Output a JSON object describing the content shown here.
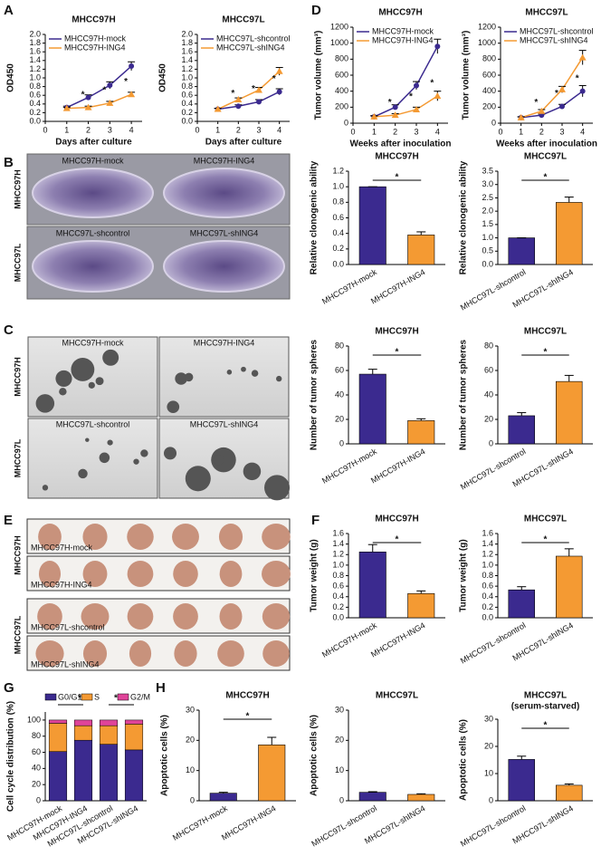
{
  "panel_labels": [
    "A",
    "B",
    "C",
    "D",
    "E",
    "F",
    "G",
    "H"
  ],
  "photo_panels": {
    "B": {
      "rows": [
        "MHCC97H",
        "MHCC97L"
      ],
      "captions": [
        [
          "MHCC97H-mock",
          "MHCC97H-ING4"
        ],
        [
          "MHCC97L-shcontrol",
          "MHCC97L-shING4"
        ]
      ]
    },
    "C": {
      "rows": [
        "MHCC97H",
        "MHCC97L"
      ],
      "captions": [
        [
          "MHCC97H-mock",
          "MHCC97H-ING4"
        ],
        [
          "MHCC97L-shcontrol",
          "MHCC97L-shING4"
        ]
      ]
    },
    "E": {
      "rows": [
        "MHCC97H",
        "MHCC97L"
      ],
      "captions": [
        [
          "MHCC97H-mock",
          "MHCC97H-ING4"
        ],
        [
          "MHCC97L-shcontrol",
          "MHCC97L-shING4"
        ]
      ]
    }
  },
  "chart_data": [
    {
      "type": "line",
      "title": "MHCC97H",
      "x_label": "Days after culture",
      "y_label": "OD450",
      "x": [
        1,
        2,
        3,
        4
      ],
      "xlim": [
        0,
        4.5
      ],
      "xticks": [
        0,
        1,
        2,
        3,
        4
      ],
      "ylim": [
        0,
        2.0
      ],
      "yticks": [
        {
          "value": 0,
          "label": "0.0"
        },
        0.2,
        0.4,
        0.6,
        0.8,
        {
          "value": 1,
          "label": "1.0"
        },
        1.2,
        1.4,
        1.6,
        1.8,
        {
          "value": 2,
          "label": "2.0"
        }
      ],
      "series": [
        {
          "name": "MHCC97H-mock",
          "color": "#3b2a8f",
          "values": [
            0.32,
            0.55,
            0.83,
            1.27
          ],
          "errors": [
            0.03,
            0.06,
            0.08,
            0.1
          ]
        },
        {
          "name": "MHCC97H-ING4",
          "color": "#f49a33",
          "values": [
            0.3,
            0.32,
            0.42,
            0.62
          ],
          "errors": [
            0.02,
            0.03,
            0.04,
            0.05
          ]
        }
      ],
      "annotations": [
        {
          "text": "*",
          "x": 2
        },
        {
          "text": "*",
          "x": 3
        },
        {
          "text": "*",
          "x": 4
        }
      ]
    },
    {
      "type": "line",
      "title": "MHCC97L",
      "x_label": "Days after culture",
      "y_label": "OD450",
      "x": [
        1,
        2,
        3,
        4
      ],
      "xlim": [
        0,
        4.5
      ],
      "xticks": [
        0,
        1,
        2,
        3,
        4
      ],
      "ylim": [
        0,
        2.0
      ],
      "yticks": [
        {
          "value": 0,
          "label": "0.0"
        },
        0.2,
        0.4,
        0.6,
        0.8,
        {
          "value": 1,
          "label": "1.0"
        },
        1.2,
        1.4,
        1.6,
        1.8,
        {
          "value": 2,
          "label": "2.0"
        }
      ],
      "series": [
        {
          "name": "MHCC97L-shcontrol",
          "color": "#3b2a8f",
          "values": [
            0.28,
            0.35,
            0.45,
            0.68
          ],
          "errors": [
            0.02,
            0.03,
            0.05,
            0.07
          ]
        },
        {
          "name": "MHCC97L-shING4",
          "color": "#f49a33",
          "values": [
            0.28,
            0.5,
            0.72,
            1.15
          ],
          "errors": [
            0.02,
            0.04,
            0.06,
            0.09
          ]
        }
      ],
      "annotations": [
        {
          "text": "*",
          "x": 2
        },
        {
          "text": "*",
          "x": 3
        },
        {
          "text": "*",
          "x": 4
        }
      ]
    },
    {
      "type": "line",
      "title": "MHCC97H",
      "x_label": "Weeks after inoculation",
      "y_label": "Tumor volume (mm³)",
      "x": [
        1,
        2,
        3,
        4
      ],
      "xlim": [
        0,
        4.5
      ],
      "xticks": [
        0,
        1,
        2,
        3,
        4
      ],
      "ylim": [
        0,
        1200
      ],
      "yticks": [
        0,
        200,
        400,
        600,
        800,
        1000,
        1200
      ],
      "series": [
        {
          "name": "MHCC97H-mock",
          "color": "#3b2a8f",
          "values": [
            80,
            200,
            470,
            960
          ],
          "errors": [
            15,
            30,
            50,
            90
          ]
        },
        {
          "name": "MHCC97H-ING4",
          "color": "#f49a33",
          "values": [
            80,
            100,
            170,
            340
          ],
          "errors": [
            10,
            20,
            30,
            60
          ]
        }
      ],
      "annotations": [
        {
          "text": "*",
          "x": 2
        },
        {
          "text": "*",
          "x": 3
        },
        {
          "text": "*",
          "x": 4
        }
      ]
    },
    {
      "type": "line",
      "title": "MHCC97L",
      "x_label": "Weeks after inoculation",
      "y_label": "Tumor volume (mm³)",
      "x": [
        1,
        2,
        3,
        4
      ],
      "xlim": [
        0,
        4.5
      ],
      "xticks": [
        0,
        1,
        2,
        3,
        4
      ],
      "ylim": [
        0,
        1200
      ],
      "yticks": [
        0,
        200,
        400,
        600,
        800,
        1000,
        1200
      ],
      "series": [
        {
          "name": "MHCC97L-shcontrol",
          "color": "#3b2a8f",
          "values": [
            70,
            100,
            210,
            400
          ],
          "errors": [
            10,
            15,
            25,
            70
          ]
        },
        {
          "name": "MHCC97L-shING4",
          "color": "#f49a33",
          "values": [
            70,
            150,
            420,
            820
          ],
          "errors": [
            10,
            20,
            40,
            90
          ]
        }
      ],
      "annotations": [
        {
          "text": "*",
          "x": 2
        },
        {
          "text": "*",
          "x": 3
        },
        {
          "text": "*",
          "x": 4
        }
      ]
    },
    {
      "type": "bar",
      "title": "MHCC97H",
      "y_label": "Relative clonogenic ability",
      "categories": [
        "MHCC97H-mock",
        "MHCC97H-ING4"
      ],
      "values": [
        1.0,
        0.38
      ],
      "errors": [
        0,
        0.04
      ],
      "colors": [
        "#3b2a8f",
        "#f49a33"
      ],
      "ylim": [
        0,
        1.2
      ],
      "yticks": [
        {
          "value": 0,
          "label": "0.0"
        },
        0.2,
        0.4,
        0.6,
        0.8,
        {
          "value": 1,
          "label": "1.0"
        },
        1.2
      ],
      "annotations": [
        {
          "text": "*"
        }
      ]
    },
    {
      "type": "bar",
      "title": "MHCC97L",
      "y_label": "Relative clonogenic ability",
      "categories": [
        "MHCC97L-shcontrol",
        "MHCC97L-shING4"
      ],
      "values": [
        1.0,
        2.33
      ],
      "errors": [
        0,
        0.2
      ],
      "colors": [
        "#3b2a8f",
        "#f49a33"
      ],
      "ylim": [
        0,
        3.5
      ],
      "yticks": [
        {
          "value": 0,
          "label": "0.0"
        },
        0.5,
        {
          "value": 1,
          "label": "1.0"
        },
        1.5,
        {
          "value": 2,
          "label": "2.0"
        },
        2.5,
        {
          "value": 3,
          "label": "3.0"
        },
        3.5
      ],
      "annotations": [
        {
          "text": "*"
        }
      ]
    },
    {
      "type": "bar",
      "title": "MHCC97H",
      "y_label": "Number of tumor spheres",
      "categories": [
        "MHCC97H-mock",
        "MHCC97H-ING4"
      ],
      "values": [
        57,
        19
      ],
      "errors": [
        4,
        1.5
      ],
      "colors": [
        "#3b2a8f",
        "#f49a33"
      ],
      "ylim": [
        0,
        80
      ],
      "yticks": [
        0,
        20,
        40,
        60,
        80
      ],
      "annotations": [
        {
          "text": "*"
        }
      ]
    },
    {
      "type": "bar",
      "title": "MHCC97L",
      "y_label": "Number of tumor spheres",
      "categories": [
        "MHCC97L-shcontrol",
        "MHCC97L-shING4"
      ],
      "values": [
        23,
        51
      ],
      "errors": [
        2.5,
        5
      ],
      "colors": [
        "#3b2a8f",
        "#f49a33"
      ],
      "ylim": [
        0,
        80
      ],
      "yticks": [
        0,
        20,
        40,
        60,
        80
      ],
      "annotations": [
        {
          "text": "*"
        }
      ]
    },
    {
      "type": "bar",
      "title": "MHCC97H",
      "y_label": "Tumor weight (g)",
      "categories": [
        "MHCC97H-mock",
        "MHCC97H-ING4"
      ],
      "values": [
        1.25,
        0.46
      ],
      "errors": [
        0.14,
        0.05
      ],
      "colors": [
        "#3b2a8f",
        "#f49a33"
      ],
      "ylim": [
        0,
        1.6
      ],
      "yticks": [
        {
          "value": 0,
          "label": "0.0"
        },
        0.2,
        0.4,
        0.6,
        0.8,
        {
          "value": 1,
          "label": "1.0"
        },
        1.2,
        1.4,
        1.6
      ],
      "annotations": [
        {
          "text": "*"
        }
      ]
    },
    {
      "type": "bar",
      "title": "MHCC97L",
      "y_label": "Tumor weight (g)",
      "categories": [
        "MHCC97L-shcontrol",
        "MHCC97L-shING4"
      ],
      "values": [
        0.53,
        1.17
      ],
      "errors": [
        0.06,
        0.14
      ],
      "colors": [
        "#3b2a8f",
        "#f49a33"
      ],
      "ylim": [
        0,
        1.6
      ],
      "yticks": [
        {
          "value": 0,
          "label": "0.0"
        },
        0.2,
        0.4,
        0.6,
        0.8,
        {
          "value": 1,
          "label": "1.0"
        },
        1.2,
        1.4,
        1.6
      ],
      "annotations": [
        {
          "text": "*"
        }
      ]
    },
    {
      "type": "stacked-bar",
      "y_label": "Cell cycle distribution (%)",
      "categories": [
        "MHCC97H-mock",
        "MHCC97H-ING4",
        "MHCC97L-shcontrol",
        "MHCC97L-shING4"
      ],
      "series": [
        {
          "name": "G0/G1",
          "color": "#3b2a8f",
          "values": [
            61,
            75,
            70,
            63
          ]
        },
        {
          "name": "S",
          "color": "#f49a33",
          "values": [
            35,
            18,
            23,
            32
          ]
        },
        {
          "name": "G2/M",
          "color": "#e0449a",
          "values": [
            4,
            7,
            7,
            5
          ]
        }
      ],
      "ylim": [
        0,
        110
      ],
      "yticks": [
        0,
        20,
        40,
        60,
        80,
        100
      ],
      "annotations": [
        {
          "text": "*"
        },
        {
          "text": "*"
        }
      ]
    },
    {
      "type": "bar",
      "title": "MHCC97H",
      "y_label": "Apoptotic cells (%)",
      "categories": [
        "MHCC97H-mock",
        "MHCC97H-ING4"
      ],
      "values": [
        2.5,
        18.5
      ],
      "errors": [
        0.3,
        2.5
      ],
      "colors": [
        "#3b2a8f",
        "#f49a33"
      ],
      "ylim": [
        0,
        30
      ],
      "yticks": [
        0,
        10,
        20,
        30
      ],
      "annotations": [
        {
          "text": "*"
        }
      ]
    },
    {
      "type": "bar",
      "title": "MHCC97L",
      "y_label": "Apoptotic cells (%)",
      "categories": [
        "MHCC97L-shcontrol",
        "MHCC97L-shING4"
      ],
      "values": [
        2.8,
        2.1
      ],
      "errors": [
        0.2,
        0.2
      ],
      "colors": [
        "#3b2a8f",
        "#f49a33"
      ],
      "ylim": [
        0,
        30
      ],
      "yticks": [
        0,
        10,
        20,
        30
      ]
    },
    {
      "type": "bar",
      "title": "MHCC97L",
      "subtitle": "(serum-starved)",
      "y_label": "Apoptotic cells (%)",
      "categories": [
        "MHCC97L-shcontrol",
        "MHCC97L-shING4"
      ],
      "values": [
        15.2,
        5.7
      ],
      "errors": [
        1.2,
        0.5
      ],
      "colors": [
        "#3b2a8f",
        "#f49a33"
      ],
      "ylim": [
        0,
        30
      ],
      "yticks": [
        0,
        10,
        20,
        30
      ],
      "annotations": [
        {
          "text": "*"
        }
      ]
    }
  ]
}
